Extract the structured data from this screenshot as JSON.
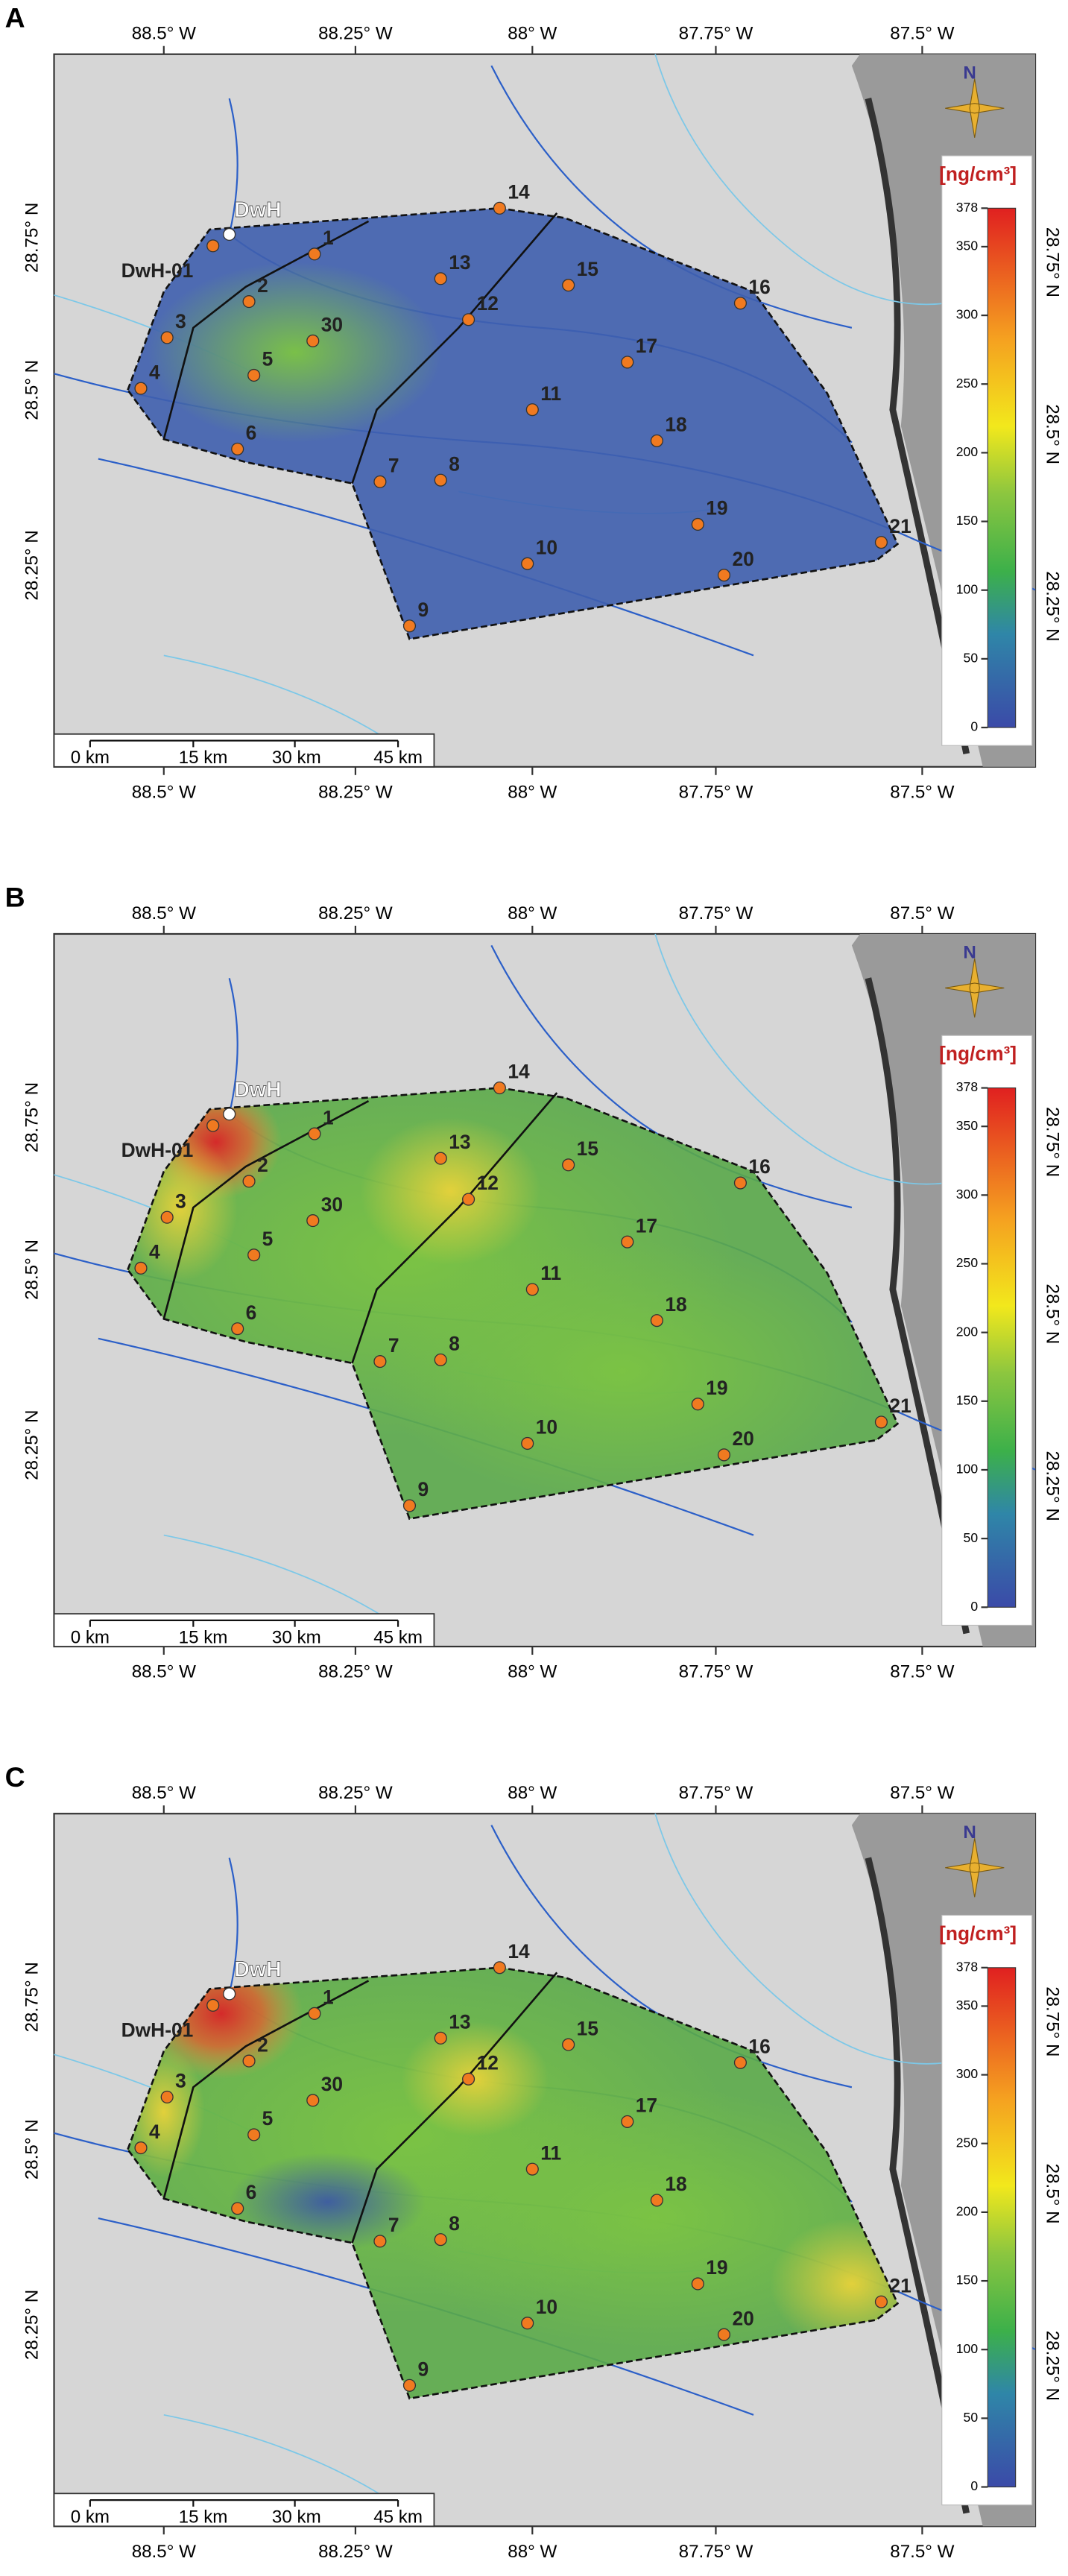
{
  "panels": [
    {
      "label": "A"
    },
    {
      "label": "B"
    },
    {
      "label": "C"
    }
  ],
  "longitude_labels": [
    "88.5° W",
    "88.25° W",
    "88° W",
    "87.75° W",
    "87.5° W"
  ],
  "latitude_labels_left": [
    "28.75° N",
    "28.5° N",
    "28.25° N"
  ],
  "latitude_labels_right": [
    "28.75° N",
    "28.5° N",
    "28.25° N"
  ],
  "north_label": "N",
  "scale_bar": {
    "labels": [
      "0 km",
      "15 km",
      "30 km",
      "45 km"
    ]
  },
  "colorbar": {
    "unit": "[ng/cm³]",
    "range": [
      0,
      378
    ],
    "ticks": [
      0,
      50,
      100,
      150,
      200,
      250,
      300,
      350,
      378
    ]
  },
  "stations": [
    {
      "label": "DwH"
    },
    {
      "label": "DwH-01"
    },
    {
      "label": "1"
    },
    {
      "label": "2"
    },
    {
      "label": "3"
    },
    {
      "label": "30"
    },
    {
      "label": "4"
    },
    {
      "label": "5"
    },
    {
      "label": "6"
    },
    {
      "label": "13"
    },
    {
      "label": "12"
    },
    {
      "label": "14"
    },
    {
      "label": "15"
    },
    {
      "label": "16"
    },
    {
      "label": "17"
    },
    {
      "label": "11"
    },
    {
      "label": "18"
    },
    {
      "label": "7"
    },
    {
      "label": "8"
    },
    {
      "label": "19"
    },
    {
      "label": "21"
    },
    {
      "label": "10"
    },
    {
      "label": "20"
    },
    {
      "label": "9"
    }
  ]
}
